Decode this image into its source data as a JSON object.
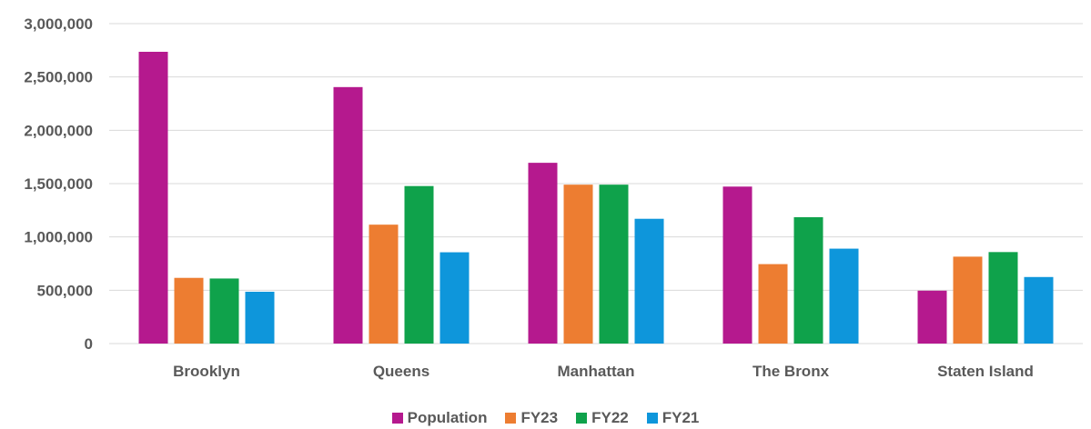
{
  "chart_data": {
    "type": "bar",
    "categories": [
      "Brooklyn",
      "Queens",
      "Manhattan",
      "The Bronx",
      "Staten Island"
    ],
    "series": [
      {
        "name": "Population",
        "color": "#B5198E",
        "values": [
          2736000,
          2405000,
          1695000,
          1472000,
          496000
        ]
      },
      {
        "name": "FY23",
        "color": "#ED7D31",
        "values": [
          616000,
          1115000,
          1490000,
          745000,
          815000
        ]
      },
      {
        "name": "FY22",
        "color": "#0FA24B",
        "values": [
          610000,
          1477000,
          1490000,
          1185000,
          858000
        ]
      },
      {
        "name": "FY21",
        "color": "#0E96DB",
        "values": [
          486000,
          856000,
          1170000,
          890000,
          624000
        ]
      }
    ],
    "ylim": [
      0,
      3000000
    ],
    "yticks": [
      "0",
      "500,000",
      "1,000,000",
      "1,500,000",
      "2,000,000",
      "2,500,000",
      "3,000,000"
    ],
    "grid": true,
    "legend_position": "bottom"
  }
}
